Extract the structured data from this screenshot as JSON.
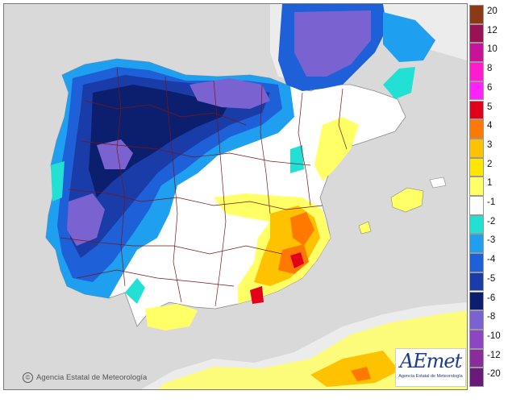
{
  "map": {
    "type": "temperature anomaly map",
    "region": "Iberian Peninsula and Balearic Islands",
    "copyright_text": "Agencia Estatal de Meteorología",
    "logo_text": "AEmet",
    "logo_subtext": "Agencia Estatal de Meteorología"
  },
  "legend": {
    "classes": [
      {
        "label": "20",
        "color": "#8b3a14"
      },
      {
        "label": "12",
        "color": "#9a1255"
      },
      {
        "label": "10",
        "color": "#c8129a"
      },
      {
        "label": "8",
        "color": "#ff1ad0"
      },
      {
        "label": "6",
        "color": "#ff22ff"
      },
      {
        "label": "5",
        "color": "#e3001b"
      },
      {
        "label": "4",
        "color": "#ff7800"
      },
      {
        "label": "3",
        "color": "#ffc200"
      },
      {
        "label": "2",
        "color": "#ffe600"
      },
      {
        "label": "1",
        "color": "#ffff66"
      },
      {
        "label": "-1",
        "color": "#ffffff"
      },
      {
        "label": "-2",
        "color": "#22e0d4"
      },
      {
        "label": "-3",
        "color": "#1e9ff0"
      },
      {
        "label": "-4",
        "color": "#1e60d8"
      },
      {
        "label": "-5",
        "color": "#1a3ca8"
      },
      {
        "label": "-6",
        "color": "#0c1f6e"
      },
      {
        "label": "-8",
        "color": "#7a63d1"
      },
      {
        "label": "-10",
        "color": "#8c46c4"
      },
      {
        "label": "-12",
        "color": "#8a2d9c"
      },
      {
        "label": "-20",
        "color": "#6a1a7a"
      }
    ]
  },
  "colors": {
    "sea": "#d9d9d9",
    "other_land": "#ececec",
    "borders": "#7a1515"
  }
}
